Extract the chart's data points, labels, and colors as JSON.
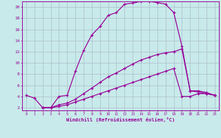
{
  "xlabel": "Windchill (Refroidissement éolien,°C)",
  "bg_color": "#c8eaea",
  "line_color": "#990099",
  "grid_color": "#aabbcc",
  "xlim": [
    -0.5,
    23.5
  ],
  "ylim": [
    1.5,
    21.0
  ],
  "xticks": [
    0,
    1,
    2,
    3,
    4,
    5,
    6,
    7,
    8,
    9,
    10,
    11,
    12,
    13,
    14,
    15,
    16,
    17,
    18,
    19,
    20,
    21,
    22,
    23
  ],
  "yticks": [
    2,
    4,
    6,
    8,
    10,
    12,
    14,
    16,
    18,
    20
  ],
  "curve1_x": [
    0,
    1,
    2,
    3,
    4,
    5,
    6,
    7,
    8,
    9,
    10,
    11,
    12,
    13,
    14,
    15,
    16,
    17,
    18,
    19,
    20,
    21,
    22,
    23
  ],
  "curve1_y": [
    4.2,
    3.7,
    2.0,
    2.0,
    4.0,
    4.2,
    8.5,
    12.2,
    15.0,
    16.5,
    18.5,
    19.0,
    20.5,
    20.7,
    21.0,
    21.0,
    20.8,
    20.5,
    19.0,
    13.0,
    5.0,
    5.0,
    4.7,
    4.2
  ],
  "curve2_x": [
    2,
    3,
    4,
    5,
    6,
    7,
    8,
    9,
    10,
    11,
    12,
    13,
    14,
    15,
    16,
    17,
    18,
    19,
    20,
    21,
    22,
    23
  ],
  "curve2_y": [
    2.0,
    2.0,
    2.5,
    2.8,
    3.5,
    4.5,
    5.5,
    6.5,
    7.5,
    8.2,
    9.0,
    9.8,
    10.5,
    11.0,
    11.5,
    11.8,
    12.0,
    12.5,
    5.0,
    4.8,
    4.5,
    4.2
  ],
  "curve3_x": [
    2,
    3,
    4,
    5,
    6,
    7,
    8,
    9,
    10,
    11,
    12,
    13,
    14,
    15,
    16,
    17,
    18,
    19,
    20,
    21,
    22,
    23
  ],
  "curve3_y": [
    2.0,
    2.0,
    2.2,
    2.5,
    3.0,
    3.5,
    4.0,
    4.5,
    5.0,
    5.5,
    6.0,
    6.5,
    7.0,
    7.5,
    8.0,
    8.5,
    9.0,
    4.0,
    4.0,
    4.5,
    4.5,
    4.2
  ]
}
